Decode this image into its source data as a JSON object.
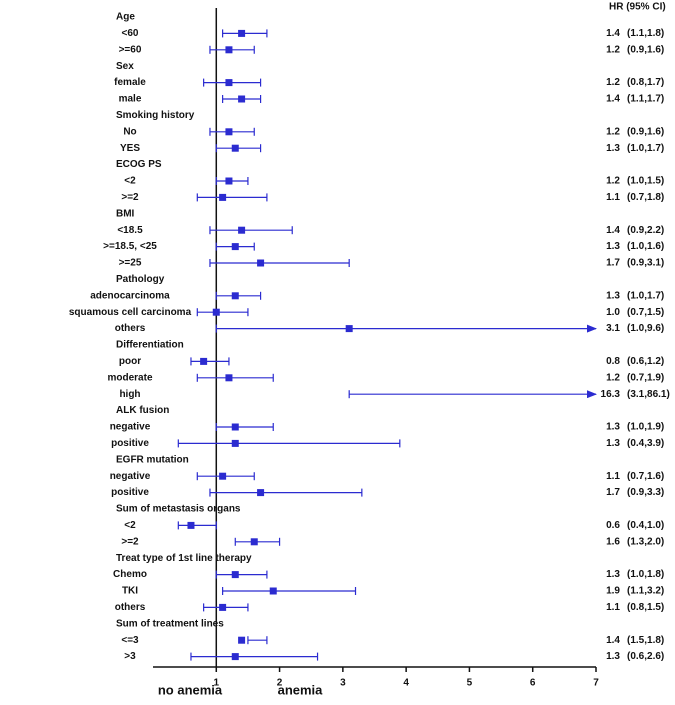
{
  "chart_data": {
    "type": "forest",
    "color": "#2b2bd0",
    "column_header": "HR  (95% CI)",
    "xlim": [
      0,
      7
    ],
    "xticks": [
      1,
      2,
      3,
      4,
      5,
      6,
      7
    ],
    "reference_line": 1,
    "left_label": "no anemia",
    "right_label": "anemia",
    "groups": [
      {
        "name": "Age",
        "rows": [
          {
            "label": "<60",
            "hr": 1.4,
            "lo": 1.1,
            "hi": 1.8,
            "hr_label": "1.4",
            "ci_label": "(1.1,1.8)"
          },
          {
            "label": ">=60",
            "hr": 1.2,
            "lo": 0.9,
            "hi": 1.6,
            "hr_label": "1.2",
            "ci_label": "(0.9,1.6)"
          }
        ]
      },
      {
        "name": "Sex",
        "rows": [
          {
            "label": "female",
            "hr": 1.2,
            "lo": 0.8,
            "hi": 1.7,
            "hr_label": "1.2",
            "ci_label": "(0.8,1.7)"
          },
          {
            "label": "male",
            "hr": 1.4,
            "lo": 1.1,
            "hi": 1.7,
            "hr_label": "1.4",
            "ci_label": "(1.1,1.7)"
          }
        ]
      },
      {
        "name": "Smoking history",
        "rows": [
          {
            "label": "No",
            "hr": 1.2,
            "lo": 0.9,
            "hi": 1.6,
            "hr_label": "1.2",
            "ci_label": "(0.9,1.6)"
          },
          {
            "label": "YES",
            "hr": 1.3,
            "lo": 1.0,
            "hi": 1.7,
            "hr_label": "1.3",
            "ci_label": "(1.0,1.7)"
          }
        ]
      },
      {
        "name": "ECOG PS",
        "rows": [
          {
            "label": "<2",
            "hr": 1.2,
            "lo": 1.0,
            "hi": 1.5,
            "hr_label": "1.2",
            "ci_label": "(1.0,1.5)"
          },
          {
            "label": ">=2",
            "hr": 1.1,
            "lo": 0.7,
            "hi": 1.8,
            "hr_label": "1.1",
            "ci_label": "(0.7,1.8)"
          }
        ]
      },
      {
        "name": "BMI",
        "rows": [
          {
            "label": "<18.5",
            "hr": 1.4,
            "lo": 0.9,
            "hi": 2.2,
            "hr_label": "1.4",
            "ci_label": "(0.9,2.2)"
          },
          {
            "label": ">=18.5,  <25",
            "hr": 1.3,
            "lo": 1.0,
            "hi": 1.6,
            "hr_label": "1.3",
            "ci_label": "(1.0,1.6)"
          },
          {
            "label": ">=25",
            "hr": 1.7,
            "lo": 0.9,
            "hi": 3.1,
            "hr_label": "1.7",
            "ci_label": "(0.9,3.1)"
          }
        ]
      },
      {
        "name": "Pathology",
        "rows": [
          {
            "label": "adenocarcinoma",
            "hr": 1.3,
            "lo": 1.0,
            "hi": 1.7,
            "hr_label": "1.3",
            "ci_label": "(1.0,1.7)"
          },
          {
            "label": "squamous cell carcinoma",
            "hr": 1.0,
            "lo": 0.7,
            "hi": 1.5,
            "hr_label": "1.0",
            "ci_label": "(0.7,1.5)"
          },
          {
            "label": "others",
            "hr": 3.1,
            "lo": 1.0,
            "hi": 9.6,
            "hr_label": "3.1",
            "ci_label": "(1.0,9.6)"
          }
        ]
      },
      {
        "name": "Differentiation",
        "rows": [
          {
            "label": "poor",
            "hr": 0.8,
            "lo": 0.6,
            "hi": 1.2,
            "hr_label": "0.8",
            "ci_label": "(0.6,1.2)"
          },
          {
            "label": "moderate",
            "hr": 1.2,
            "lo": 0.7,
            "hi": 1.9,
            "hr_label": "1.2",
            "ci_label": "(0.7,1.9)"
          },
          {
            "label": "high",
            "hr": 16.3,
            "lo": 3.1,
            "hi": 86.1,
            "hr_label": "16.3",
            "ci_label": "(3.1,86.1)"
          }
        ]
      },
      {
        "name": "ALK fusion",
        "rows": [
          {
            "label": "negative",
            "hr": 1.3,
            "lo": 1.0,
            "hi": 1.9,
            "hr_label": "1.3",
            "ci_label": "(1.0,1.9)"
          },
          {
            "label": "positive",
            "hr": 1.3,
            "lo": 0.4,
            "hi": 3.9,
            "hr_label": "1.3",
            "ci_label": "(0.4,3.9)"
          }
        ]
      },
      {
        "name": "EGFR mutation",
        "rows": [
          {
            "label": "negative",
            "hr": 1.1,
            "lo": 0.7,
            "hi": 1.6,
            "hr_label": "1.1",
            "ci_label": "(0.7,1.6)"
          },
          {
            "label": "positive",
            "hr": 1.7,
            "lo": 0.9,
            "hi": 3.3,
            "hr_label": "1.7",
            "ci_label": "(0.9,3.3)"
          }
        ]
      },
      {
        "name": "Sum of metastasis organs",
        "rows": [
          {
            "label": "<2",
            "hr": 0.6,
            "lo": 0.4,
            "hi": 1.0,
            "hr_label": "0.6",
            "ci_label": "(0.4,1.0)"
          },
          {
            "label": ">=2",
            "hr": 1.6,
            "lo": 1.3,
            "hi": 2.0,
            "hr_label": "1.6",
            "ci_label": "(1.3,2.0)"
          }
        ]
      },
      {
        "name": "Treat type of 1st line therapy",
        "rows": [
          {
            "label": "Chemo",
            "hr": 1.3,
            "lo": 1.0,
            "hi": 1.8,
            "hr_label": "1.3",
            "ci_label": "(1.0,1.8)"
          },
          {
            "label": "TKI",
            "hr": 1.9,
            "lo": 1.1,
            "hi": 3.2,
            "hr_label": "1.9",
            "ci_label": "(1.1,3.2)"
          },
          {
            "label": "others",
            "hr": 1.1,
            "lo": 0.8,
            "hi": 1.5,
            "hr_label": "1.1",
            "ci_label": "(0.8,1.5)"
          }
        ]
      },
      {
        "name": "Sum of treatment lines",
        "rows": [
          {
            "label": "<=3",
            "hr": 1.4,
            "lo": 1.5,
            "hi": 1.8,
            "hr_label": "1.4",
            "ci_label": "(1.5,1.8)"
          },
          {
            "label": ">3",
            "hr": 1.3,
            "lo": 0.6,
            "hi": 2.6,
            "hr_label": "1.3",
            "ci_label": "(0.6,2.6)"
          }
        ]
      }
    ]
  }
}
